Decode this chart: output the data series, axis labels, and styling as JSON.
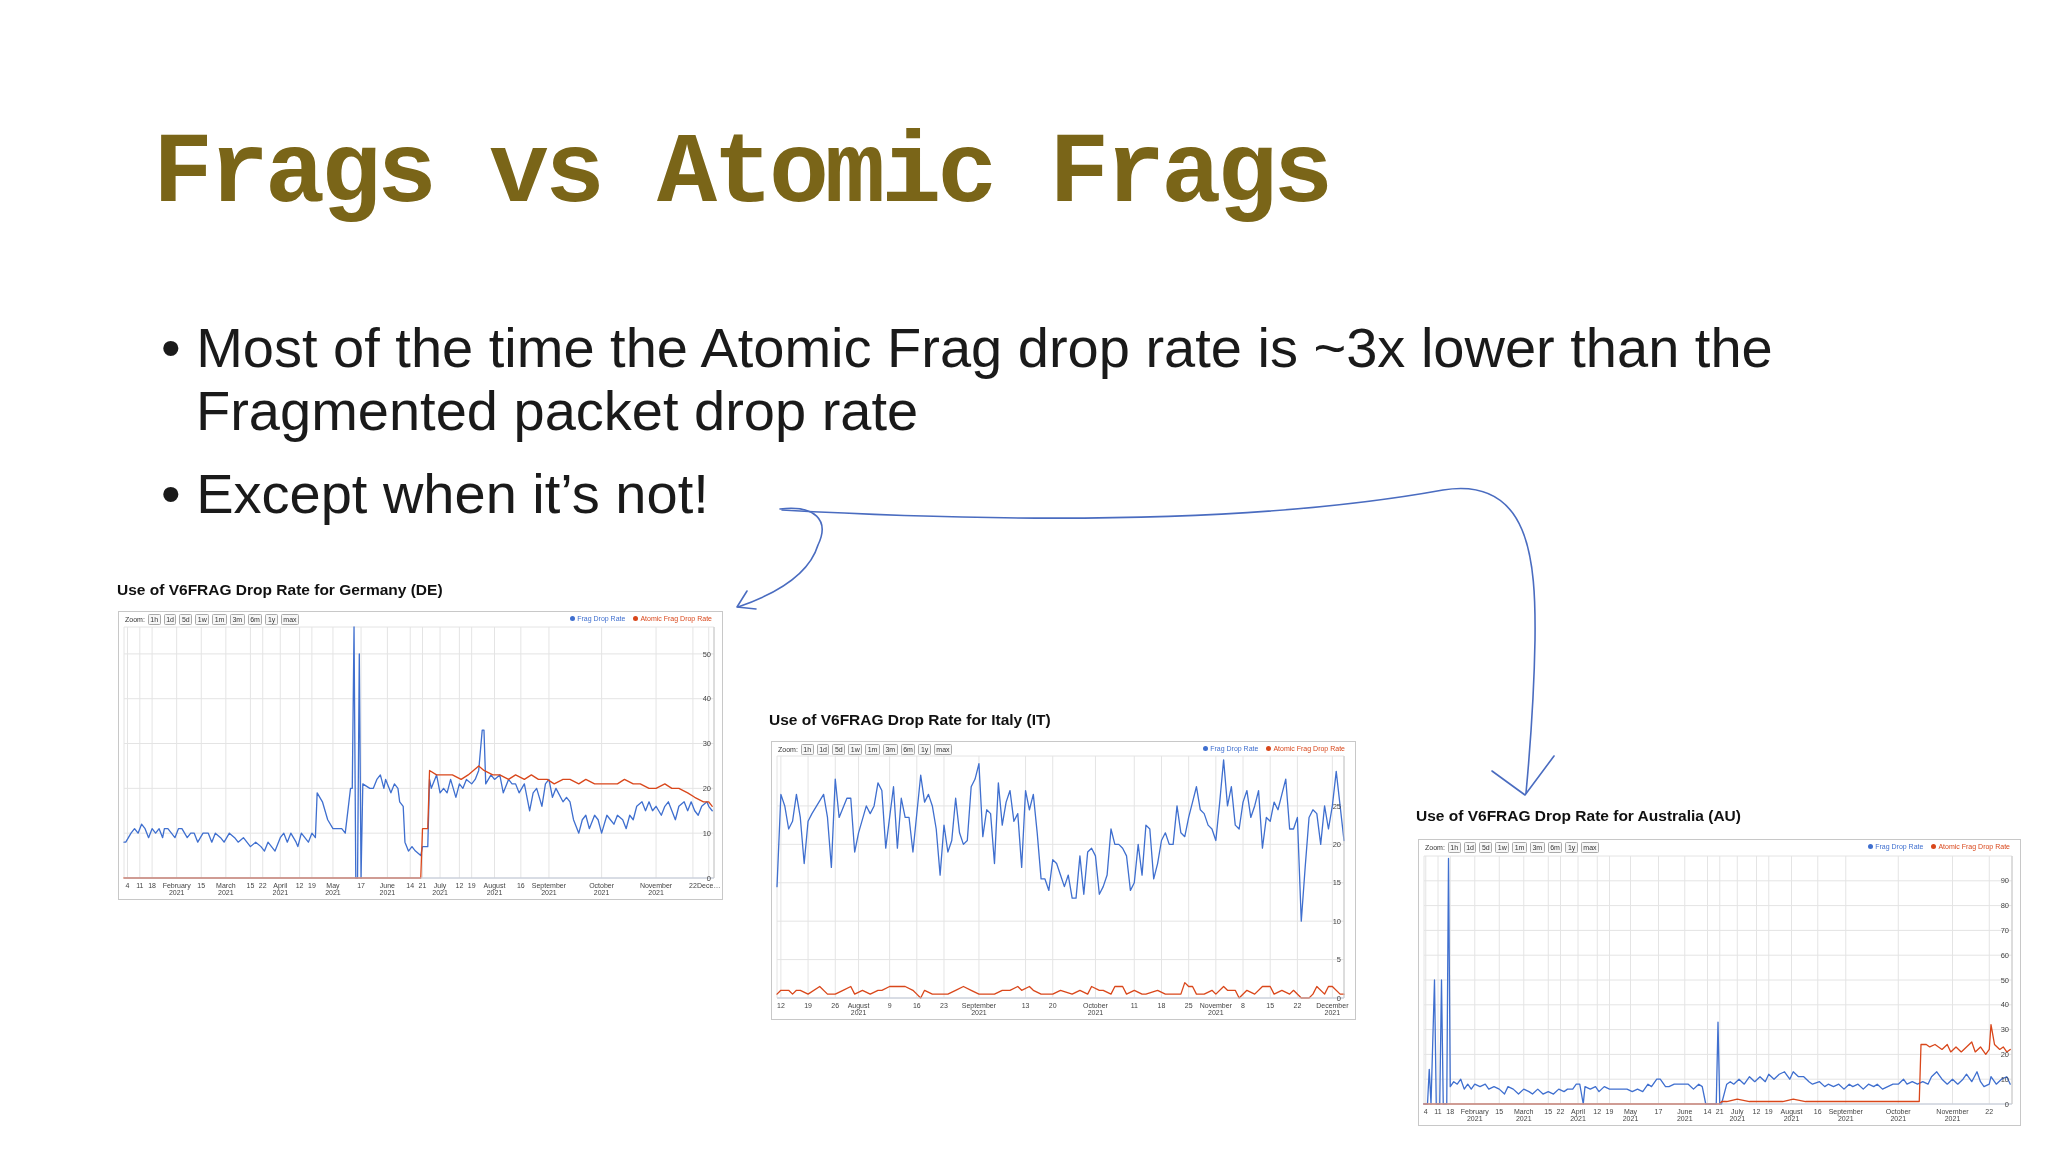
{
  "chart_data": [
    {
      "type": "other",
      "title": "Frags vs Atomic Frags",
      "annotations": [
        "• Most of the time the Atomic Frag drop rate is ~3x lower than the Fragmented packet drop rate",
        "• Except when it’s not!"
      ]
    },
    {
      "type": "line",
      "title": "Use of V6FRAG Drop Rate for Germany (DE)",
      "annotations": [
        "Zoom:",
        "1h",
        "1d",
        "5d",
        "1w",
        "1m",
        "3m",
        "6m",
        "1y",
        "max"
      ],
      "legend": "top right",
      "grid": true,
      "xlim": [
        "2021-01-02",
        "2021-12-04"
      ],
      "ylim": [
        0,
        56
      ],
      "yticks": [
        0,
        10,
        20,
        30,
        40,
        50
      ],
      "xticks": [
        {
          "value": "2021-01-04",
          "label": "4"
        },
        {
          "value": "2021-01-11",
          "label": "11"
        },
        {
          "value": "2021-01-18",
          "label": "18"
        },
        {
          "value": "2021-02-01",
          "label": "February 2021"
        },
        {
          "value": "2021-02-15",
          "label": "15"
        },
        {
          "value": "2021-03-01",
          "label": "March 2021"
        },
        {
          "value": "2021-03-15",
          "label": "15"
        },
        {
          "value": "2021-03-22",
          "label": "22"
        },
        {
          "value": "2021-04-01",
          "label": "April 2021"
        },
        {
          "value": "2021-04-12",
          "label": "12"
        },
        {
          "value": "2021-04-19",
          "label": "19"
        },
        {
          "value": "2021-05-01",
          "label": "May 2021"
        },
        {
          "value": "2021-05-17",
          "label": "17"
        },
        {
          "value": "2021-06-01",
          "label": "June 2021"
        },
        {
          "value": "2021-06-14",
          "label": "14"
        },
        {
          "value": "2021-06-21",
          "label": "21"
        },
        {
          "value": "2021-07-01",
          "label": "July 2021"
        },
        {
          "value": "2021-07-12",
          "label": "12"
        },
        {
          "value": "2021-07-19",
          "label": "19"
        },
        {
          "value": "2021-08-01",
          "label": "August 2021"
        },
        {
          "value": "2021-08-16",
          "label": "16"
        },
        {
          "value": "2021-09-01",
          "label": "September 2021"
        },
        {
          "value": "2021-10-01",
          "label": "October 2021"
        },
        {
          "value": "2021-11-01",
          "label": "November 2021"
        },
        {
          "value": "2021-11-22",
          "label": "22"
        },
        {
          "value": "2021-12-01",
          "label": "Dece…"
        }
      ],
      "series": [
        {
          "name": "Frag Drop Rate",
          "color": "#3f6fcf",
          "x": [
            "2021-01-02",
            "2021-01-03",
            "2021-01-06",
            "2021-01-08",
            "2021-01-10",
            "2021-01-12",
            "2021-01-14",
            "2021-01-16",
            "2021-01-18",
            "2021-01-20",
            "2021-01-22",
            "2021-01-24",
            "2021-01-25",
            "2021-01-27",
            "2021-01-31",
            "2021-02-02",
            "2021-02-04",
            "2021-02-07",
            "2021-02-09",
            "2021-02-11",
            "2021-02-13",
            "2021-02-16",
            "2021-02-19",
            "2021-02-21",
            "2021-02-23",
            "2021-02-26",
            "2021-02-28",
            "2021-03-03",
            "2021-03-06",
            "2021-03-08",
            "2021-03-11",
            "2021-03-13",
            "2021-03-15",
            "2021-03-18",
            "2021-03-21",
            "2021-03-23",
            "2021-03-25",
            "2021-03-27",
            "2021-03-29",
            "2021-04-01",
            "2021-04-03",
            "2021-04-05",
            "2021-04-07",
            "2021-04-10",
            "2021-04-11",
            "2021-04-13",
            "2021-04-15",
            "2021-04-17",
            "2021-04-19",
            "2021-04-21",
            "2021-04-22",
            "2021-04-25",
            "2021-04-28",
            "2021-05-01",
            "2021-05-04",
            "2021-05-06",
            "2021-05-08",
            "2021-05-11",
            "2021-05-12",
            "2021-05-13",
            "2021-05-14",
            "2021-05-15",
            "2021-05-16",
            "2021-05-17",
            "2021-05-18",
            "2021-05-22",
            "2021-05-24",
            "2021-05-26",
            "2021-05-28",
            "2021-05-30",
            "2021-05-31",
            "2021-06-03",
            "2021-06-05",
            "2021-06-07",
            "2021-06-08",
            "2021-06-10",
            "2021-06-11",
            "2021-06-13",
            "2021-06-15",
            "2021-06-17",
            "2021-06-20",
            "2021-06-21",
            "2021-06-23",
            "2021-06-24",
            "2021-06-25",
            "2021-06-26",
            "2021-06-29",
            "2021-07-01",
            "2021-07-03",
            "2021-07-05",
            "2021-07-07",
            "2021-07-10",
            "2021-07-12",
            "2021-07-14",
            "2021-07-16",
            "2021-07-19",
            "2021-07-21",
            "2021-07-23",
            "2021-07-25",
            "2021-07-26",
            "2021-07-27",
            "2021-07-30",
            "2021-08-01",
            "2021-08-04",
            "2021-08-06",
            "2021-08-09",
            "2021-08-11",
            "2021-08-13",
            "2021-08-15",
            "2021-08-18",
            "2021-08-21",
            "2021-08-23",
            "2021-08-25",
            "2021-08-28",
            "2021-08-30",
            "2021-09-01",
            "2021-09-03",
            "2021-09-05",
            "2021-09-09",
            "2021-09-11",
            "2021-09-13",
            "2021-09-15",
            "2021-09-18",
            "2021-09-20",
            "2021-09-22",
            "2021-09-24",
            "2021-09-27",
            "2021-09-29",
            "2021-10-01",
            "2021-10-04",
            "2021-10-06",
            "2021-10-08",
            "2021-10-10",
            "2021-10-13",
            "2021-10-15",
            "2021-10-17",
            "2021-10-19",
            "2021-10-21",
            "2021-10-24",
            "2021-10-26",
            "2021-10-28",
            "2021-10-30",
            "2021-11-01",
            "2021-11-04",
            "2021-11-06",
            "2021-11-08",
            "2021-11-10",
            "2021-11-12",
            "2021-11-14",
            "2021-11-17",
            "2021-11-19",
            "2021-11-21",
            "2021-11-23",
            "2021-11-25",
            "2021-11-27",
            "2021-11-30",
            "2021-12-01",
            "2021-12-03"
          ],
          "values": [
            8,
            8,
            10,
            11,
            10,
            12,
            11,
            9,
            11,
            10,
            11,
            9,
            11,
            11,
            9,
            11,
            11,
            9,
            10,
            10,
            8,
            10,
            10,
            8,
            10,
            9,
            8,
            10,
            9,
            8,
            9,
            8,
            7,
            8,
            7,
            6,
            8,
            7,
            6,
            9,
            10,
            8,
            10,
            8,
            7,
            10,
            9,
            8,
            10,
            9,
            19,
            17,
            13,
            11,
            11,
            11,
            10,
            20,
            20,
            56,
            0,
            0,
            50,
            0,
            21,
            20,
            20,
            22,
            23,
            20,
            22,
            19,
            21,
            20,
            17,
            16,
            8,
            6,
            7,
            6,
            5,
            7,
            7,
            7,
            22,
            20,
            23,
            19,
            20,
            19,
            22,
            18,
            21,
            20,
            22,
            21,
            22,
            24,
            33,
            33,
            21,
            23,
            22,
            23,
            19,
            22,
            21,
            21,
            19,
            21,
            15,
            19,
            20,
            16,
            21,
            22,
            18,
            20,
            17,
            18,
            17,
            13,
            10,
            13,
            14,
            11,
            14,
            13,
            10,
            14,
            13,
            12,
            14,
            13,
            11,
            14,
            13,
            16,
            17,
            15,
            17,
            15,
            16,
            14,
            16,
            17,
            15,
            13,
            16,
            17,
            15,
            17,
            15,
            14,
            16,
            17,
            16,
            15
          ]
        },
        {
          "name": "Atomic Frag Drop Rate",
          "color": "#d9471b",
          "x": [
            "2021-01-02",
            "2021-06-20",
            "2021-06-21",
            "2021-06-24",
            "2021-06-25",
            "2021-06-29",
            "2021-07-04",
            "2021-07-08",
            "2021-07-13",
            "2021-07-17",
            "2021-07-23",
            "2021-07-26",
            "2021-07-31",
            "2021-08-04",
            "2021-08-09",
            "2021-08-13",
            "2021-08-18",
            "2021-08-22",
            "2021-08-26",
            "2021-08-31",
            "2021-09-04",
            "2021-09-09",
            "2021-09-13",
            "2021-09-18",
            "2021-09-22",
            "2021-09-27",
            "2021-10-01",
            "2021-10-05",
            "2021-10-10",
            "2021-10-14",
            "2021-10-19",
            "2021-10-23",
            "2021-10-28",
            "2021-11-01",
            "2021-11-06",
            "2021-11-10",
            "2021-11-14",
            "2021-11-19",
            "2021-11-23",
            "2021-11-28",
            "2021-12-01",
            "2021-12-03"
          ],
          "values": [
            0,
            0,
            11,
            11,
            24,
            23,
            23,
            23,
            22,
            23,
            25,
            24,
            23,
            23,
            22,
            23,
            22,
            23,
            22,
            22,
            21,
            22,
            22,
            21,
            22,
            21,
            21,
            21,
            21,
            22,
            21,
            21,
            20,
            20,
            21,
            20,
            20,
            19,
            18,
            17,
            17,
            16
          ]
        }
      ]
    },
    {
      "type": "line",
      "title": "Use of V6FRAG Drop Rate for Italy (IT)",
      "annotations": [
        "Zoom:",
        "1h",
        "1d",
        "5d",
        "1w",
        "1m",
        "3m",
        "6m",
        "1y",
        "max"
      ],
      "legend": "top right",
      "grid": true,
      "xlim": [
        "2021-07-11",
        "2021-12-04"
      ],
      "ylim": [
        0,
        31.5
      ],
      "yticks": [
        0,
        5,
        10,
        15,
        20,
        25
      ],
      "xticks": [
        {
          "value": "2021-07-12",
          "label": "12"
        },
        {
          "value": "2021-07-19",
          "label": "19"
        },
        {
          "value": "2021-07-26",
          "label": "26"
        },
        {
          "value": "2021-08-01",
          "label": "August 2021"
        },
        {
          "value": "2021-08-09",
          "label": "9"
        },
        {
          "value": "2021-08-16",
          "label": "16"
        },
        {
          "value": "2021-08-23",
          "label": "23"
        },
        {
          "value": "2021-09-01",
          "label": "September 2021"
        },
        {
          "value": "2021-09-13",
          "label": "13"
        },
        {
          "value": "2021-09-20",
          "label": "20"
        },
        {
          "value": "2021-10-01",
          "label": "October 2021"
        },
        {
          "value": "2021-10-11",
          "label": "11"
        },
        {
          "value": "2021-10-18",
          "label": "18"
        },
        {
          "value": "2021-10-25",
          "label": "25"
        },
        {
          "value": "2021-11-01",
          "label": "November 2021"
        },
        {
          "value": "2021-11-08",
          "label": "8"
        },
        {
          "value": "2021-11-15",
          "label": "15"
        },
        {
          "value": "2021-11-22",
          "label": "22"
        },
        {
          "value": "2021-12-01",
          "label": "December 2021"
        }
      ],
      "series": [
        {
          "name": "Frag Drop Rate",
          "color": "#3f6fcf",
          "x": [
            "2021-07-11",
            "2021-07-12",
            "2021-07-13",
            "2021-07-14",
            "2021-07-15",
            "2021-07-16",
            "2021-07-17",
            "2021-07-18",
            "2021-07-19",
            "2021-07-20",
            "2021-07-23",
            "2021-07-24",
            "2021-07-25",
            "2021-07-26",
            "2021-07-27",
            "2021-07-29",
            "2021-07-30",
            "2021-07-31",
            "2021-08-01",
            "2021-08-03",
            "2021-08-04",
            "2021-08-05",
            "2021-08-06",
            "2021-08-07",
            "2021-08-08",
            "2021-08-10",
            "2021-08-11",
            "2021-08-12",
            "2021-08-13",
            "2021-08-14",
            "2021-08-15",
            "2021-08-17",
            "2021-08-18",
            "2021-08-19",
            "2021-08-20",
            "2021-08-21",
            "2021-08-22",
            "2021-08-23",
            "2021-08-24",
            "2021-08-25",
            "2021-08-26",
            "2021-08-27",
            "2021-08-28",
            "2021-08-29",
            "2021-08-30",
            "2021-08-31",
            "2021-09-01",
            "2021-09-02",
            "2021-09-03",
            "2021-09-04",
            "2021-09-05",
            "2021-09-06",
            "2021-09-07",
            "2021-09-08",
            "2021-09-09",
            "2021-09-10",
            "2021-09-11",
            "2021-09-12",
            "2021-09-13",
            "2021-09-14",
            "2021-09-15",
            "2021-09-16",
            "2021-09-17",
            "2021-09-18",
            "2021-09-19",
            "2021-09-20",
            "2021-09-21",
            "2021-09-22",
            "2021-09-23",
            "2021-09-24",
            "2021-09-25",
            "2021-09-26",
            "2021-09-27",
            "2021-09-28",
            "2021-09-29",
            "2021-09-30",
            "2021-10-01",
            "2021-10-02",
            "2021-10-03",
            "2021-10-04",
            "2021-10-05",
            "2021-10-06",
            "2021-10-07",
            "2021-10-08",
            "2021-10-09",
            "2021-10-10",
            "2021-10-11",
            "2021-10-12",
            "2021-10-13",
            "2021-10-14",
            "2021-10-15",
            "2021-10-16",
            "2021-10-17",
            "2021-10-18",
            "2021-10-19",
            "2021-10-20",
            "2021-10-21",
            "2021-10-22",
            "2021-10-23",
            "2021-10-24",
            "2021-10-25",
            "2021-10-26",
            "2021-10-27",
            "2021-10-28",
            "2021-10-29",
            "2021-10-30",
            "2021-10-31",
            "2021-11-01",
            "2021-11-02",
            "2021-11-03",
            "2021-11-04",
            "2021-11-05",
            "2021-11-06",
            "2021-11-07",
            "2021-11-08",
            "2021-11-09",
            "2021-11-10",
            "2021-11-11",
            "2021-11-12",
            "2021-11-13",
            "2021-11-14",
            "2021-11-15",
            "2021-11-16",
            "2021-11-17",
            "2021-11-18",
            "2021-11-19",
            "2021-11-20",
            "2021-11-21",
            "2021-11-22",
            "2021-11-23",
            "2021-11-24",
            "2021-11-25",
            "2021-11-26",
            "2021-11-27",
            "2021-11-28",
            "2021-11-29",
            "2021-11-30",
            "2021-12-01",
            "2021-12-02",
            "2021-12-03",
            "2021-12-04"
          ],
          "values": [
            14.5,
            26.5,
            25,
            22,
            23,
            26.5,
            23.5,
            17.5,
            23,
            24,
            26.5,
            23.5,
            17,
            28.5,
            23.5,
            26,
            26,
            19,
            21.5,
            25,
            24,
            25,
            28,
            27,
            19.5,
            27.5,
            19.5,
            26,
            23.5,
            23.5,
            19,
            29,
            25.5,
            26.5,
            25,
            22,
            16,
            22.5,
            19,
            20.5,
            26,
            21.5,
            20,
            20.5,
            27.5,
            28.5,
            30.5,
            21,
            24.5,
            24,
            17.5,
            28,
            22.5,
            25.5,
            27,
            23,
            24,
            17,
            27,
            24.5,
            26.5,
            21.5,
            15.5,
            15.5,
            14,
            18,
            17.5,
            16,
            14.5,
            16,
            13,
            13,
            18.5,
            13.5,
            19,
            19.5,
            18.5,
            13.5,
            14.5,
            16,
            22,
            20,
            20,
            19.5,
            18.5,
            14,
            15,
            20,
            16,
            22.5,
            22,
            15.5,
            17.5,
            20.5,
            21.5,
            20,
            20,
            25,
            21.5,
            21,
            23.5,
            25.5,
            27.5,
            24.5,
            24,
            22.5,
            22,
            20.5,
            25.5,
            31,
            25,
            27.5,
            22.5,
            22,
            25.5,
            27,
            23.5,
            25,
            27,
            19.5,
            23.5,
            23,
            25.5,
            24.5,
            26.5,
            28.5,
            22,
            22,
            23.5,
            10,
            17,
            23.5,
            24.5,
            24,
            20,
            25,
            22,
            25,
            29.5,
            25,
            20.5
          ]
        },
        {
          "name": "Atomic Frag Drop Rate",
          "color": "#d9471b",
          "x": [
            "2021-07-11",
            "2021-07-12",
            "2021-07-14",
            "2021-07-15",
            "2021-07-16",
            "2021-07-17",
            "2021-07-19",
            "2021-07-22",
            "2021-07-24",
            "2021-07-26",
            "2021-07-28",
            "2021-07-30",
            "2021-07-31",
            "2021-08-02",
            "2021-08-04",
            "2021-08-06",
            "2021-08-07",
            "2021-08-09",
            "2021-08-11",
            "2021-08-13",
            "2021-08-15",
            "2021-08-16",
            "2021-08-17",
            "2021-08-18",
            "2021-08-20",
            "2021-08-23",
            "2021-08-24",
            "2021-08-26",
            "2021-08-28",
            "2021-08-30",
            "2021-09-01",
            "2021-09-03",
            "2021-09-05",
            "2021-09-07",
            "2021-09-09",
            "2021-09-11",
            "2021-09-12",
            "2021-09-14",
            "2021-09-15",
            "2021-09-17",
            "2021-09-20",
            "2021-09-22",
            "2021-09-25",
            "2021-09-27",
            "2021-09-29",
            "2021-09-30",
            "2021-10-02",
            "2021-10-03",
            "2021-10-05",
            "2021-10-06",
            "2021-10-08",
            "2021-10-09",
            "2021-10-11",
            "2021-10-13",
            "2021-10-14",
            "2021-10-17",
            "2021-10-19",
            "2021-10-21",
            "2021-10-23",
            "2021-10-24",
            "2021-10-25",
            "2021-10-26",
            "2021-10-27",
            "2021-10-29",
            "2021-10-31",
            "2021-11-01",
            "2021-11-03",
            "2021-11-04",
            "2021-11-06",
            "2021-11-07",
            "2021-11-09",
            "2021-11-11",
            "2021-11-13",
            "2021-11-15",
            "2021-11-16",
            "2021-11-18",
            "2021-11-20",
            "2021-11-21",
            "2021-11-23",
            "2021-11-25",
            "2021-11-26",
            "2021-11-27",
            "2021-11-29",
            "2021-11-30",
            "2021-12-01",
            "2021-12-03",
            "2021-12-04"
          ],
          "values": [
            0.5,
            1,
            1,
            0.5,
            1,
            1,
            0.5,
            1.5,
            0.5,
            0.5,
            1,
            1.5,
            0.5,
            1,
            0.5,
            1,
            1,
            1.5,
            1.5,
            1.5,
            1,
            0.5,
            0,
            1,
            0.5,
            0.5,
            0.5,
            1,
            1.5,
            1,
            0.5,
            0.5,
            0.5,
            1,
            1,
            1.5,
            1,
            1.5,
            1,
            0.5,
            0.5,
            1,
            0.5,
            1,
            0.5,
            1.5,
            1,
            1,
            0.5,
            1.5,
            1.5,
            0.5,
            1,
            0.5,
            0.5,
            1,
            0.5,
            0.5,
            0.5,
            2,
            1.5,
            1.5,
            0.5,
            0.5,
            1,
            0.5,
            1.5,
            1,
            1,
            0,
            1,
            0.5,
            1.5,
            1.5,
            0.5,
            1,
            0.5,
            1,
            0,
            0,
            0.5,
            1.5,
            0.5,
            1.5,
            1.5,
            0.5,
            0.5
          ]
        }
      ]
    },
    {
      "type": "line",
      "title": "Use of V6FRAG Drop Rate for Australia (AU)",
      "annotations": [
        "Zoom:",
        "1h",
        "1d",
        "5d",
        "1w",
        "1m",
        "3m",
        "6m",
        "1y",
        "max"
      ],
      "legend": "top right",
      "grid": true,
      "xlim": [
        "2021-01-03",
        "2021-12-05"
      ],
      "ylim": [
        0,
        100
      ],
      "yticks": [
        0,
        10,
        20,
        30,
        40,
        50,
        60,
        70,
        80,
        90
      ],
      "xticks": [
        {
          "value": "2021-01-04",
          "label": "4"
        },
        {
          "value": "2021-01-11",
          "label": "11"
        },
        {
          "value": "2021-01-18",
          "label": "18"
        },
        {
          "value": "2021-02-01",
          "label": "February 2021"
        },
        {
          "value": "2021-02-15",
          "label": "15"
        },
        {
          "value": "2021-03-01",
          "label": "March 2021"
        },
        {
          "value": "2021-03-15",
          "label": "15"
        },
        {
          "value": "2021-03-22",
          "label": "22"
        },
        {
          "value": "2021-04-01",
          "label": "April 2021"
        },
        {
          "value": "2021-04-12",
          "label": "12"
        },
        {
          "value": "2021-04-19",
          "label": "19"
        },
        {
          "value": "2021-05-01",
          "label": "May 2021"
        },
        {
          "value": "2021-05-17",
          "label": "17"
        },
        {
          "value": "2021-06-01",
          "label": "June 2021"
        },
        {
          "value": "2021-06-14",
          "label": "14"
        },
        {
          "value": "2021-06-21",
          "label": "21"
        },
        {
          "value": "2021-07-01",
          "label": "July 2021"
        },
        {
          "value": "2021-07-12",
          "label": "12"
        },
        {
          "value": "2021-07-19",
          "label": "19"
        },
        {
          "value": "2021-08-01",
          "label": "August 2021"
        },
        {
          "value": "2021-08-16",
          "label": "16"
        },
        {
          "value": "2021-09-01",
          "label": "September 2021"
        },
        {
          "value": "2021-10-01",
          "label": "October 2021"
        },
        {
          "value": "2021-11-01",
          "label": "November 2021"
        },
        {
          "value": "2021-11-22",
          "label": "22"
        }
      ],
      "series": [
        {
          "name": "Frag Drop Rate",
          "color": "#3f6fcf",
          "x": [
            "2021-01-03",
            "2021-01-05",
            "2021-01-06",
            "2021-01-07",
            "2021-01-09",
            "2021-01-10",
            "2021-01-12",
            "2021-01-13",
            "2021-01-14",
            "2021-01-16",
            "2021-01-17",
            "2021-01-18",
            "2021-01-20",
            "2021-01-22",
            "2021-01-24",
            "2021-01-26",
            "2021-01-28",
            "2021-01-30",
            "2021-02-01",
            "2021-02-04",
            "2021-02-07",
            "2021-02-09",
            "2021-02-12",
            "2021-02-15",
            "2021-02-18",
            "2021-02-20",
            "2021-02-23",
            "2021-02-26",
            "2021-03-01",
            "2021-03-04",
            "2021-03-06",
            "2021-03-09",
            "2021-03-12",
            "2021-03-15",
            "2021-03-18",
            "2021-03-21",
            "2021-03-24",
            "2021-03-26",
            "2021-03-29",
            "2021-03-31",
            "2021-04-02",
            "2021-04-04",
            "2021-04-05",
            "2021-04-08",
            "2021-04-11",
            "2021-04-13",
            "2021-04-16",
            "2021-04-19",
            "2021-04-22",
            "2021-04-26",
            "2021-04-29",
            "2021-05-02",
            "2021-05-05",
            "2021-05-08",
            "2021-05-11",
            "2021-05-13",
            "2021-05-16",
            "2021-05-18",
            "2021-05-21",
            "2021-05-23",
            "2021-05-26",
            "2021-05-28",
            "2021-05-31",
            "2021-06-03",
            "2021-06-06",
            "2021-06-09",
            "2021-06-11",
            "2021-06-13",
            "2021-06-19",
            "2021-06-20",
            "2021-06-21",
            "2021-06-22",
            "2021-06-25",
            "2021-06-27",
            "2021-06-29",
            "2021-07-02",
            "2021-07-05",
            "2021-07-08",
            "2021-07-11",
            "2021-07-14",
            "2021-07-17",
            "2021-07-19",
            "2021-07-22",
            "2021-07-25",
            "2021-07-28",
            "2021-07-31",
            "2021-08-02",
            "2021-08-05",
            "2021-08-08",
            "2021-08-11",
            "2021-08-13",
            "2021-08-17",
            "2021-08-20",
            "2021-08-22",
            "2021-08-25",
            "2021-08-28",
            "2021-08-31",
            "2021-09-03",
            "2021-09-05",
            "2021-09-08",
            "2021-09-11",
            "2021-09-14",
            "2021-09-17",
            "2021-09-19",
            "2021-09-22",
            "2021-09-25",
            "2021-09-28",
            "2021-10-01",
            "2021-10-04",
            "2021-10-06",
            "2021-10-09",
            "2021-10-12",
            "2021-10-15",
            "2021-10-18",
            "2021-10-20",
            "2021-10-23",
            "2021-10-26",
            "2021-10-29",
            "2021-11-01",
            "2021-11-04",
            "2021-11-07",
            "2021-11-09",
            "2021-11-12",
            "2021-11-15",
            "2021-11-17",
            "2021-11-19",
            "2021-11-22",
            "2021-11-23",
            "2021-11-26",
            "2021-11-29",
            "2021-12-02",
            "2021-12-04"
          ],
          "values": [
            0,
            0,
            14,
            0,
            50,
            0,
            0,
            50,
            0,
            0,
            99,
            7,
            9,
            8,
            10,
            6,
            8,
            6,
            8,
            7,
            8,
            6,
            7,
            6,
            4,
            7,
            6,
            4,
            6,
            5,
            4,
            6,
            4,
            5,
            4,
            6,
            5,
            6,
            6,
            8,
            8,
            0,
            7,
            6,
            7,
            5,
            7,
            6,
            6,
            6,
            6,
            5,
            6,
            5,
            8,
            7,
            10,
            10,
            7,
            7,
            8,
            8,
            8,
            8,
            6,
            8,
            7,
            0,
            0,
            33,
            0,
            0,
            8,
            9,
            8,
            10,
            8,
            11,
            9,
            11,
            9,
            12,
            10,
            12,
            13,
            10,
            13,
            11,
            11,
            9,
            8,
            9,
            7,
            8,
            7,
            8,
            6,
            8,
            7,
            8,
            6,
            8,
            7,
            8,
            6,
            7,
            8,
            8,
            10,
            8,
            9,
            8,
            9,
            8,
            11,
            13,
            10,
            8,
            10,
            8,
            10,
            12,
            9,
            13,
            9,
            7,
            8,
            11,
            8,
            10,
            11,
            8
          ]
        },
        {
          "name": "Atomic Frag Drop Rate",
          "color": "#d9471b",
          "x": [
            "2021-01-03",
            "2021-06-21",
            "2021-06-22",
            "2021-06-25",
            "2021-07-01",
            "2021-07-08",
            "2021-07-15",
            "2021-07-22",
            "2021-07-27",
            "2021-08-02",
            "2021-08-09",
            "2021-08-15",
            "2021-08-22",
            "2021-08-31",
            "2021-09-09",
            "2021-09-16",
            "2021-09-23",
            "2021-10-02",
            "2021-10-13",
            "2021-10-14",
            "2021-10-17",
            "2021-10-19",
            "2021-10-22",
            "2021-10-26",
            "2021-10-29",
            "2021-10-31",
            "2021-11-03",
            "2021-11-06",
            "2021-11-09",
            "2021-11-12",
            "2021-11-14",
            "2021-11-17",
            "2021-11-20",
            "2021-11-22",
            "2021-11-23",
            "2021-11-25",
            "2021-11-28",
            "2021-11-30",
            "2021-12-02",
            "2021-12-04"
          ],
          "values": [
            0,
            0,
            1,
            1,
            2,
            1,
            1,
            1,
            1,
            2,
            1,
            1,
            1,
            1,
            1,
            1,
            1,
            1,
            1,
            24,
            24,
            23,
            24,
            22,
            24,
            21,
            23,
            21,
            23,
            25,
            21,
            23,
            20,
            22,
            32,
            24,
            22,
            23,
            21,
            22
          ]
        }
      ]
    }
  ]
}
